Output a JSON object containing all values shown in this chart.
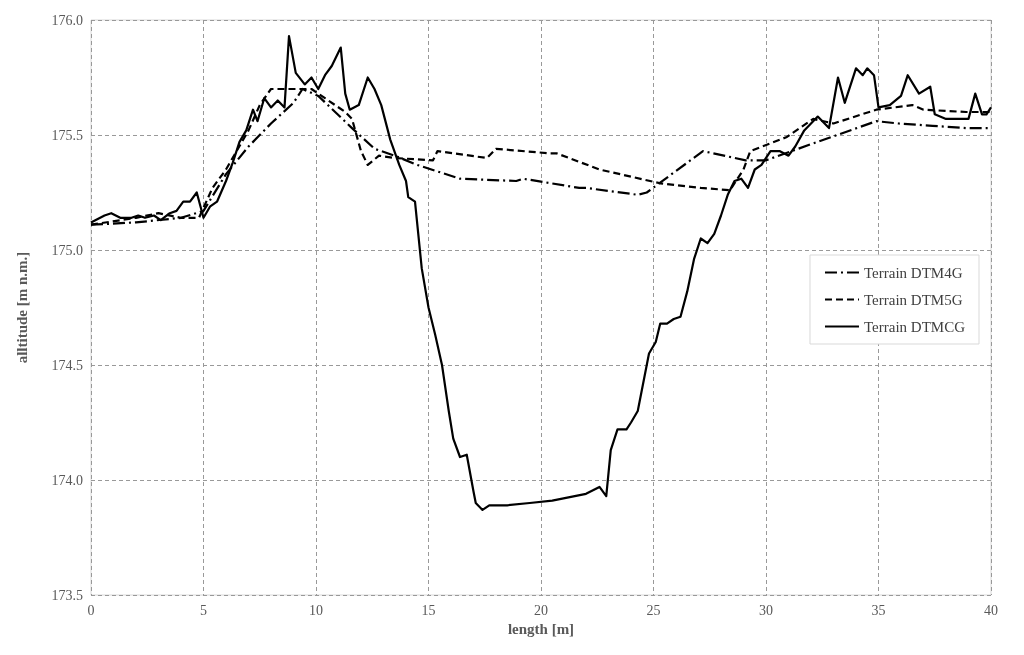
{
  "chart_data": {
    "type": "line",
    "xlabel": "length [m]",
    "ylabel": "alltitude [m n.m.]",
    "xlim": [
      0,
      40
    ],
    "ylim": [
      173.5,
      176
    ],
    "xticks": [
      0,
      5,
      10,
      15,
      20,
      25,
      30,
      35,
      40
    ],
    "yticks": [
      {
        "value": 173.5,
        "label": "173.5"
      },
      {
        "value": 174,
        "label": "174.0"
      },
      {
        "value": 174.5,
        "label": "174.5"
      },
      {
        "value": 175,
        "label": "175.0"
      },
      {
        "value": 175.5,
        "label": "175.5"
      },
      {
        "value": 176,
        "label": "176.0"
      }
    ],
    "grid": true,
    "legend": "right",
    "marker": "none",
    "series": [
      {
        "name": "Terrain DTM4G",
        "color": "#000000",
        "line_style": "dashdot",
        "x": [
          0,
          2,
          4,
          5,
          6,
          7,
          8,
          9,
          9.4,
          10.1,
          11.6,
          12.6,
          13.5,
          14.5,
          16.4,
          18.9,
          19.2,
          21.7,
          22,
          24.3,
          24.7,
          27.2,
          29.1,
          30,
          32,
          34.9,
          35.9,
          37.4,
          38.9,
          40
        ],
        "values": [
          175.11,
          175.12,
          175.14,
          175.17,
          175.33,
          175.45,
          175.55,
          175.64,
          175.7,
          175.67,
          175.53,
          175.44,
          175.41,
          175.37,
          175.31,
          175.3,
          175.31,
          175.27,
          175.27,
          175.24,
          175.25,
          175.43,
          175.39,
          175.39,
          175.46,
          175.56,
          175.55,
          175.54,
          175.53,
          175.53
        ]
      },
      {
        "name": "Terrain DTM5G",
        "color": "#000000",
        "line_style": "dashed",
        "x": [
          0,
          2,
          3,
          4,
          4.8,
          5.4,
          6,
          7,
          7.5,
          8,
          8.9,
          9.8,
          10.4,
          11.3,
          11.6,
          12,
          12.3,
          12.8,
          13.5,
          15.2,
          15.4,
          17.6,
          18,
          20.4,
          20.7,
          22.6,
          25.3,
          27.1,
          28.4,
          29,
          29.3,
          30.9,
          32.1,
          33,
          34.9,
          36.5,
          37,
          38.9,
          40
        ],
        "values": [
          175.11,
          175.14,
          175.16,
          175.14,
          175.14,
          175.27,
          175.35,
          175.52,
          175.63,
          175.7,
          175.7,
          175.7,
          175.66,
          175.6,
          175.57,
          175.43,
          175.37,
          175.41,
          175.4,
          175.39,
          175.43,
          175.4,
          175.44,
          175.42,
          175.42,
          175.35,
          175.29,
          175.27,
          175.26,
          175.35,
          175.43,
          175.49,
          175.57,
          175.55,
          175.61,
          175.63,
          175.61,
          175.6,
          175.6
        ]
      },
      {
        "name": "Terrain DTMCG",
        "color": "#000000",
        "line_style": "solid",
        "x": [
          0,
          0.6,
          0.9,
          1.3,
          1.8,
          2.1,
          2.4,
          2.8,
          3.1,
          3.5,
          3.8,
          4.1,
          4.4,
          4.7,
          5,
          5.3,
          5.6,
          6,
          6.3,
          6.6,
          6.9,
          7.2,
          7.4,
          7.7,
          8,
          8.3,
          8.6,
          8.8,
          9.1,
          9.5,
          9.8,
          10.1,
          10.4,
          10.7,
          11.1,
          11.3,
          11.5,
          11.9,
          12.3,
          12.6,
          12.9,
          13.3,
          13.7,
          14,
          14.1,
          14.4,
          14.7,
          15,
          15.3,
          15.6,
          15.9,
          16.1,
          16.4,
          16.7,
          17,
          17.1,
          17.4,
          17.7,
          18.5,
          19.5,
          20.5,
          21.5,
          22,
          22.6,
          22.9,
          23.1,
          23.4,
          23.8,
          24,
          24.3,
          24.6,
          24.8,
          25.1,
          25.3,
          25.6,
          25.9,
          26.2,
          26.5,
          26.8,
          27.1,
          27.4,
          27.7,
          28,
          28.3,
          28.6,
          28.9,
          29.2,
          29.5,
          29.8,
          30.2,
          30.6,
          31,
          31.3,
          31.7,
          32,
          32.3,
          32.8,
          33.2,
          33.5,
          34,
          34.3,
          34.5,
          34.8,
          35,
          35.5,
          36,
          36.3,
          36.8,
          37.3,
          37.5,
          38,
          38.7,
          39,
          39.3,
          39.6,
          39.8,
          40
        ],
        "values": [
          175.12,
          175.15,
          175.16,
          175.14,
          175.14,
          175.15,
          175.14,
          175.15,
          175.13,
          175.16,
          175.17,
          175.21,
          175.21,
          175.25,
          175.14,
          175.19,
          175.21,
          175.3,
          175.38,
          175.47,
          175.52,
          175.61,
          175.56,
          175.66,
          175.62,
          175.65,
          175.62,
          175.93,
          175.77,
          175.72,
          175.75,
          175.7,
          175.76,
          175.8,
          175.88,
          175.68,
          175.61,
          175.63,
          175.75,
          175.7,
          175.63,
          175.48,
          175.37,
          175.3,
          175.23,
          175.21,
          174.92,
          174.75,
          174.63,
          174.5,
          174.3,
          174.18,
          174.1,
          174.11,
          173.95,
          173.9,
          173.87,
          173.89,
          173.89,
          173.9,
          173.91,
          173.93,
          173.94,
          173.97,
          173.93,
          174.13,
          174.22,
          174.22,
          174.25,
          174.3,
          174.45,
          174.55,
          174.6,
          174.68,
          174.68,
          174.7,
          174.71,
          174.82,
          174.96,
          175.05,
          175.03,
          175.07,
          175.15,
          175.24,
          175.3,
          175.31,
          175.27,
          175.35,
          175.37,
          175.43,
          175.43,
          175.41,
          175.45,
          175.52,
          175.55,
          175.58,
          175.53,
          175.75,
          175.64,
          175.79,
          175.76,
          175.79,
          175.76,
          175.62,
          175.63,
          175.67,
          175.76,
          175.68,
          175.71,
          175.59,
          175.57,
          175.57,
          175.57,
          175.68,
          175.59,
          175.59,
          175.62
        ]
      }
    ]
  }
}
